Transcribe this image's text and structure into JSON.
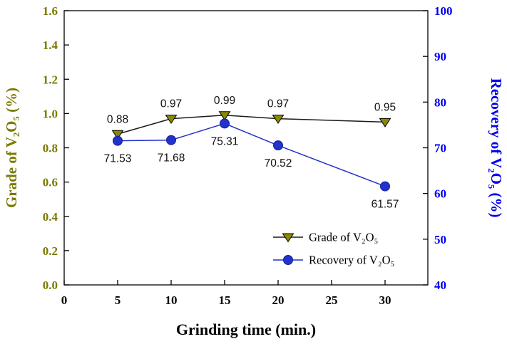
{
  "chart_data": {
    "type": "line",
    "title": "",
    "xlabel": "Grinding time (min.)",
    "ylabel_left": "Grade of V₂O₅ (%)",
    "ylabel_right": "Recovery of V₂O₅ (%)",
    "x": [
      5,
      10,
      15,
      20,
      30
    ],
    "xlim": [
      0,
      34
    ],
    "xticks": [
      "0",
      "5",
      "10",
      "15",
      "20",
      "25",
      "30"
    ],
    "ylim_left": [
      0,
      1.6
    ],
    "yticks_left": [
      "0.0",
      "0.2",
      "0.4",
      "0.6",
      "0.8",
      "1.0",
      "1.2",
      "1.4",
      "1.6"
    ],
    "ylim_right": [
      40,
      100
    ],
    "yticks_right": [
      "40",
      "50",
      "60",
      "70",
      "80",
      "90",
      "100"
    ],
    "grid": false,
    "legend_position": "inside-bottom-right",
    "series": [
      {
        "name": "Grade of V₂O₅",
        "axis": "left",
        "marker": "triangle-down",
        "line_color": "#1a1a1a",
        "marker_fill": "#8a8a00",
        "marker_stroke": "#000000",
        "values": [
          0.88,
          0.97,
          0.99,
          0.97,
          0.95
        ],
        "point_labels": [
          "0.88",
          "0.97",
          "0.99",
          "0.97",
          "0.95"
        ],
        "label_side": "above"
      },
      {
        "name": "Recovery of V₂O₅",
        "axis": "right",
        "marker": "circle",
        "line_color": "#2233cc",
        "marker_fill": "#2233cc",
        "marker_stroke": "#1a1a99",
        "values": [
          71.53,
          71.68,
          75.31,
          70.52,
          61.57
        ],
        "point_labels": [
          "71.53",
          "71.68",
          "75.31",
          "70.52",
          "61.57"
        ],
        "label_side": "below"
      }
    ],
    "colors": {
      "left_axis": "#7a7a00",
      "right_axis": "#0000ee",
      "frame": "#000000",
      "background": "#ffffff"
    }
  }
}
